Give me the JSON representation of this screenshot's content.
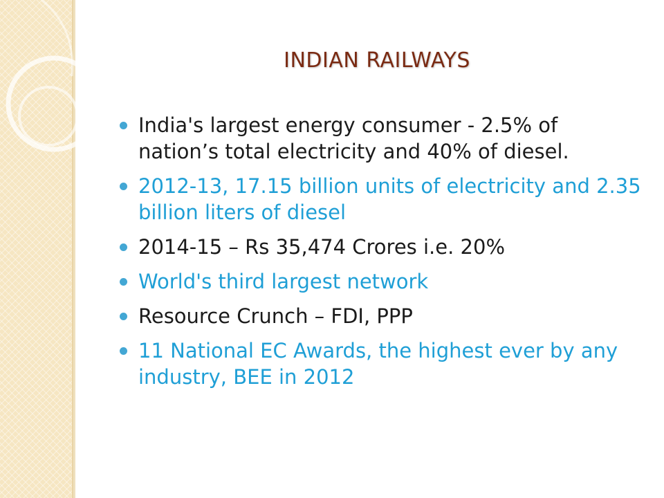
{
  "slide": {
    "title": "INDIAN RAILWAYS",
    "bullets": [
      {
        "text": "India's largest energy consumer - 2.5% of nation’s total electricity and 40% of diesel.",
        "color": "#1b1b1b"
      },
      {
        "text": "2012-13, 17.15 billion units of electricity and 2.35 billion liters of diesel",
        "color": "#1f9fd6"
      },
      {
        "text": "2014-15 – Rs 35,474 Crores i.e. 20%",
        "color": "#1b1b1b"
      },
      {
        "text": "World's third largest network",
        "color": "#1f9fd6"
      },
      {
        "text": "Resource Crunch – FDI, PPP",
        "color": "#1b1b1b"
      },
      {
        "text": "11 National EC  Awards, the highest ever by any industry, BEE in 2012",
        "color": "#1f9fd6"
      }
    ]
  },
  "theme": {
    "title_color": "#7a2a12",
    "bullet_marker_color": "#43a7d4",
    "side_band_color": "#f6e6c2"
  }
}
